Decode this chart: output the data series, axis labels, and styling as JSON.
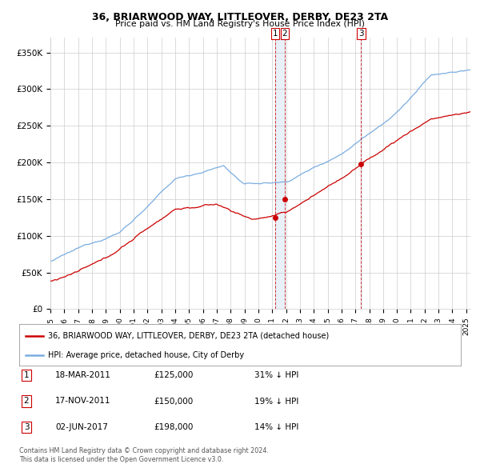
{
  "title": "36, BRIARWOOD WAY, LITTLEOVER, DERBY, DE23 2TA",
  "subtitle": "Price paid vs. HM Land Registry's House Price Index (HPI)",
  "xlim_start": 1995.0,
  "xlim_end": 2025.3,
  "ylim": [
    0,
    370000
  ],
  "yticks": [
    0,
    50000,
    100000,
    150000,
    200000,
    250000,
    300000,
    350000
  ],
  "ytick_labels": [
    "£0",
    "£50K",
    "£100K",
    "£150K",
    "£200K",
    "£250K",
    "£300K",
    "£350K"
  ],
  "transaction_dates": [
    2011.21,
    2011.9,
    2017.42
  ],
  "transaction_prices": [
    125000,
    150000,
    198000
  ],
  "transaction_labels": [
    "1",
    "2",
    "3"
  ],
  "legend_line1": "36, BRIARWOOD WAY, LITTLEOVER, DERBY, DE23 2TA (detached house)",
  "legend_line2": "HPI: Average price, detached house, City of Derby",
  "table_data": [
    [
      "1",
      "18-MAR-2011",
      "£125,000",
      "31% ↓ HPI"
    ],
    [
      "2",
      "17-NOV-2011",
      "£150,000",
      "19% ↓ HPI"
    ],
    [
      "3",
      "02-JUN-2017",
      "£198,000",
      "14% ↓ HPI"
    ]
  ],
  "footnote": "Contains HM Land Registry data © Crown copyright and database right 2024.\nThis data is licensed under the Open Government Licence v3.0.",
  "line_color_red": "#cc0000",
  "line_color_blue": "#7aade0",
  "background_color": "#ffffff",
  "vline_bg_color": "#e8f0f8",
  "grid_color": "#cccccc"
}
